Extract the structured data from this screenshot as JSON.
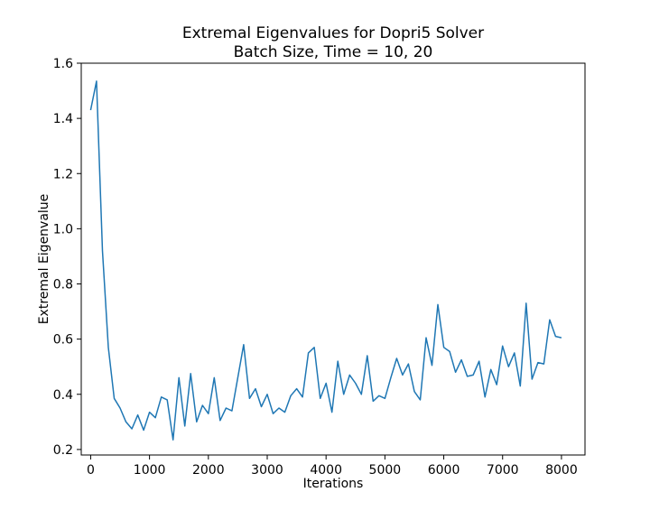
{
  "chart_data": {
    "type": "line",
    "title": "Extremal Eigenvalues for Dopri5 Solver",
    "subtitle": "Batch Size, Time = 10, 20",
    "xlabel": "Iterations",
    "ylabel": "Extremal Eigenvalue",
    "xlim": [
      -160,
      8400
    ],
    "ylim": [
      0.18,
      1.6
    ],
    "xticks": [
      0,
      1000,
      2000,
      3000,
      4000,
      5000,
      6000,
      7000,
      8000
    ],
    "yticks": [
      0.2,
      0.4,
      0.6,
      0.8,
      1.0,
      1.2,
      1.4,
      1.6
    ],
    "xtick_labels": [
      "0",
      "1000",
      "2000",
      "3000",
      "4000",
      "5000",
      "6000",
      "7000",
      "8000"
    ],
    "ytick_labels": [
      "0.2",
      "0.4",
      "0.6",
      "0.8",
      "1.0",
      "1.2",
      "1.4",
      "1.6"
    ],
    "grid": false,
    "line_color": "#1f77b4",
    "series": [
      {
        "x": [
          0,
          100,
          200,
          300,
          400,
          500,
          600,
          700,
          800,
          900,
          1000,
          1100,
          1200,
          1300,
          1400,
          1500,
          1600,
          1700,
          1800,
          1900,
          2000,
          2100,
          2200,
          2300,
          2400,
          2500,
          2600,
          2700,
          2800,
          2900,
          3000,
          3100,
          3200,
          3300,
          3400,
          3500,
          3600,
          3700,
          3800,
          3900,
          4000,
          4100,
          4200,
          4300,
          4400,
          4500,
          4600,
          4700,
          4800,
          4900,
          5000,
          5100,
          5200,
          5300,
          5400,
          5500,
          5600,
          5700,
          5800,
          5900,
          6000,
          6100,
          6200,
          6300,
          6400,
          6500,
          6600,
          6700,
          6800,
          6900,
          7000,
          7100,
          7200,
          7300,
          7400,
          7500,
          7600,
          7700,
          7800,
          7900,
          8000
        ],
        "values": [
          1.43,
          1.535,
          0.92,
          0.57,
          0.385,
          0.35,
          0.3,
          0.275,
          0.325,
          0.27,
          0.335,
          0.315,
          0.39,
          0.38,
          0.235,
          0.46,
          0.285,
          0.475,
          0.3,
          0.36,
          0.33,
          0.46,
          0.305,
          0.35,
          0.34,
          0.46,
          0.58,
          0.385,
          0.42,
          0.355,
          0.4,
          0.33,
          0.35,
          0.335,
          0.395,
          0.42,
          0.39,
          0.55,
          0.57,
          0.385,
          0.44,
          0.335,
          0.52,
          0.4,
          0.47,
          0.44,
          0.4,
          0.54,
          0.375,
          0.395,
          0.385,
          0.46,
          0.53,
          0.47,
          0.51,
          0.41,
          0.38,
          0.605,
          0.505,
          0.725,
          0.57,
          0.555,
          0.48,
          0.525,
          0.465,
          0.47,
          0.52,
          0.39,
          0.49,
          0.435,
          0.575,
          0.5,
          0.55,
          0.43,
          0.73,
          0.455,
          0.515,
          0.51,
          0.67,
          0.61,
          0.605
        ]
      }
    ]
  }
}
